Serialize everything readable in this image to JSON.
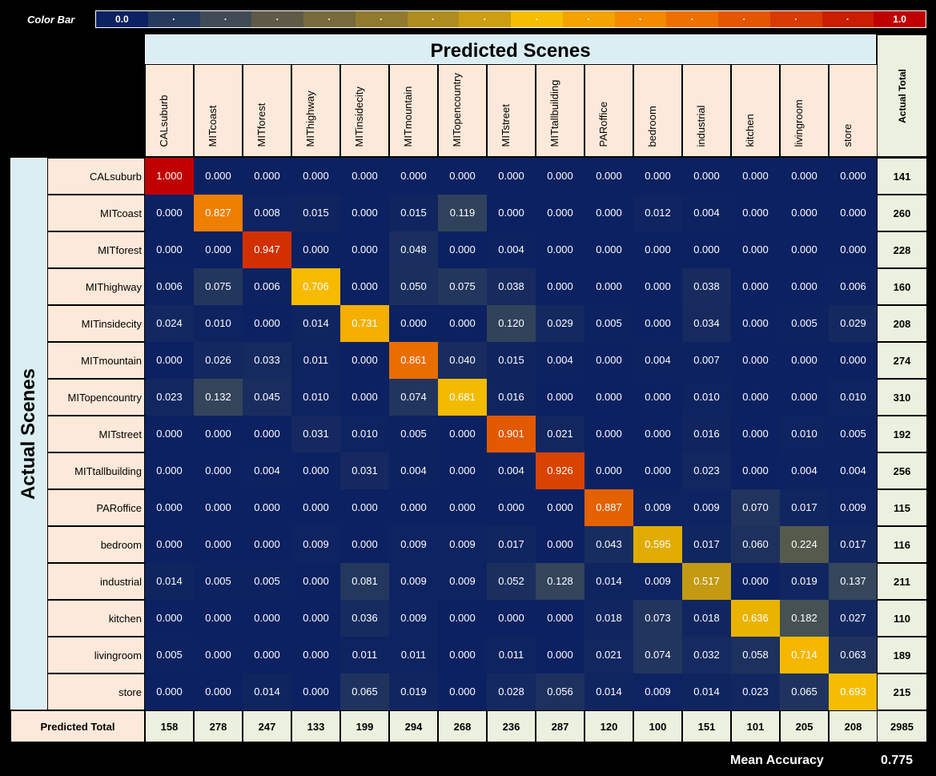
{
  "colorbar": {
    "label": "Color Bar",
    "min_label": "0.0",
    "max_label": "1.0",
    "tick_label": "·",
    "colors": [
      "#0B2161",
      "#263A5E",
      "#414B55",
      "#5E5A45",
      "#786A3A",
      "#907A2E",
      "#AE8C20",
      "#CC9E12",
      "#F6BE00",
      "#F4A300",
      "#F38A00",
      "#EE7000",
      "#E45600",
      "#D83A00",
      "#C91E00",
      "#C00000"
    ]
  },
  "chart_data": {
    "type": "heatmap",
    "title": "Predicted Scenes",
    "ylabel": "Actual Scenes",
    "x_categories": [
      "CALsuburb",
      "MITcoast",
      "MITforest",
      "MIThighway",
      "MITinsidecity",
      "MITmountain",
      "MITopencountry",
      "MITstreet",
      "MITtallbuilding",
      "PARoffice",
      "bedroom",
      "industrial",
      "kitchen",
      "livingroom",
      "store"
    ],
    "y_categories": [
      "CALsuburb",
      "MITcoast",
      "MITforest",
      "MIThighway",
      "MITinsidecity",
      "MITmountain",
      "MITopencountry",
      "MITstreet",
      "MITtallbuilding",
      "PARoffice",
      "bedroom",
      "industrial",
      "kitchen",
      "livingroom",
      "store"
    ],
    "values": [
      [
        "1.000",
        "0.000",
        "0.000",
        "0.000",
        "0.000",
        "0.000",
        "0.000",
        "0.000",
        "0.000",
        "0.000",
        "0.000",
        "0.000",
        "0.000",
        "0.000",
        "0.000"
      ],
      [
        "0.000",
        "0.827",
        "0.008",
        "0.015",
        "0.000",
        "0.015",
        "0.119",
        "0.000",
        "0.000",
        "0.000",
        "0.012",
        "0.004",
        "0.000",
        "0.000",
        "0.000"
      ],
      [
        "0.000",
        "0.000",
        "0.947",
        "0.000",
        "0.000",
        "0.048",
        "0.000",
        "0.004",
        "0.000",
        "0.000",
        "0.000",
        "0.000",
        "0.000",
        "0.000",
        "0.000"
      ],
      [
        "0.006",
        "0.075",
        "0.006",
        "0.706",
        "0.000",
        "0.050",
        "0.075",
        "0.038",
        "0.000",
        "0.000",
        "0.000",
        "0.038",
        "0.000",
        "0.000",
        "0.006"
      ],
      [
        "0.024",
        "0.010",
        "0.000",
        "0.014",
        "0.731",
        "0.000",
        "0.000",
        "0.120",
        "0.029",
        "0.005",
        "0.000",
        "0.034",
        "0.000",
        "0.005",
        "0.029"
      ],
      [
        "0.000",
        "0.026",
        "0.033",
        "0.011",
        "0.000",
        "0.861",
        "0.040",
        "0.015",
        "0.004",
        "0.000",
        "0.004",
        "0.007",
        "0.000",
        "0.000",
        "0.000"
      ],
      [
        "0.023",
        "0.132",
        "0.045",
        "0.010",
        "0.000",
        "0.074",
        "0.681",
        "0.016",
        "0.000",
        "0.000",
        "0.000",
        "0.010",
        "0.000",
        "0.000",
        "0.010"
      ],
      [
        "0.000",
        "0.000",
        "0.000",
        "0.031",
        "0.010",
        "0.005",
        "0.000",
        "0.901",
        "0.021",
        "0.000",
        "0.000",
        "0.016",
        "0.000",
        "0.010",
        "0.005"
      ],
      [
        "0.000",
        "0.000",
        "0.004",
        "0.000",
        "0.031",
        "0.004",
        "0.000",
        "0.004",
        "0.926",
        "0.000",
        "0.000",
        "0.023",
        "0.000",
        "0.004",
        "0.004"
      ],
      [
        "0.000",
        "0.000",
        "0.000",
        "0.000",
        "0.000",
        "0.000",
        "0.000",
        "0.000",
        "0.000",
        "0.887",
        "0.009",
        "0.009",
        "0.070",
        "0.017",
        "0.009"
      ],
      [
        "0.000",
        "0.000",
        "0.000",
        "0.009",
        "0.000",
        "0.009",
        "0.009",
        "0.017",
        "0.000",
        "0.043",
        "0.595",
        "0.017",
        "0.060",
        "0.224",
        "0.017"
      ],
      [
        "0.014",
        "0.005",
        "0.005",
        "0.000",
        "0.081",
        "0.009",
        "0.009",
        "0.052",
        "0.128",
        "0.014",
        "0.009",
        "0.517",
        "0.000",
        "0.019",
        "0.137"
      ],
      [
        "0.000",
        "0.000",
        "0.000",
        "0.000",
        "0.036",
        "0.009",
        "0.000",
        "0.000",
        "0.000",
        "0.018",
        "0.073",
        "0.018",
        "0.636",
        "0.182",
        "0.027"
      ],
      [
        "0.005",
        "0.000",
        "0.000",
        "0.000",
        "0.011",
        "0.011",
        "0.000",
        "0.011",
        "0.000",
        "0.021",
        "0.074",
        "0.032",
        "0.058",
        "0.714",
        "0.063"
      ],
      [
        "0.000",
        "0.000",
        "0.014",
        "0.000",
        "0.065",
        "0.019",
        "0.000",
        "0.028",
        "0.056",
        "0.014",
        "0.009",
        "0.014",
        "0.023",
        "0.065",
        "0.693"
      ]
    ],
    "actual_total_label": "Actual Total",
    "actual_totals": [
      "141",
      "260",
      "228",
      "160",
      "208",
      "274",
      "310",
      "192",
      "256",
      "115",
      "116",
      "211",
      "110",
      "189",
      "215"
    ],
    "predicted_total_label": "Predicted Total",
    "predicted_totals": [
      "158",
      "278",
      "247",
      "133",
      "199",
      "294",
      "268",
      "236",
      "287",
      "120",
      "100",
      "151",
      "101",
      "205",
      "208"
    ],
    "grand_total": "2985",
    "color_range": [
      0,
      1
    ]
  },
  "mean_accuracy": {
    "label": "Mean Accuracy",
    "value": "0.775"
  }
}
